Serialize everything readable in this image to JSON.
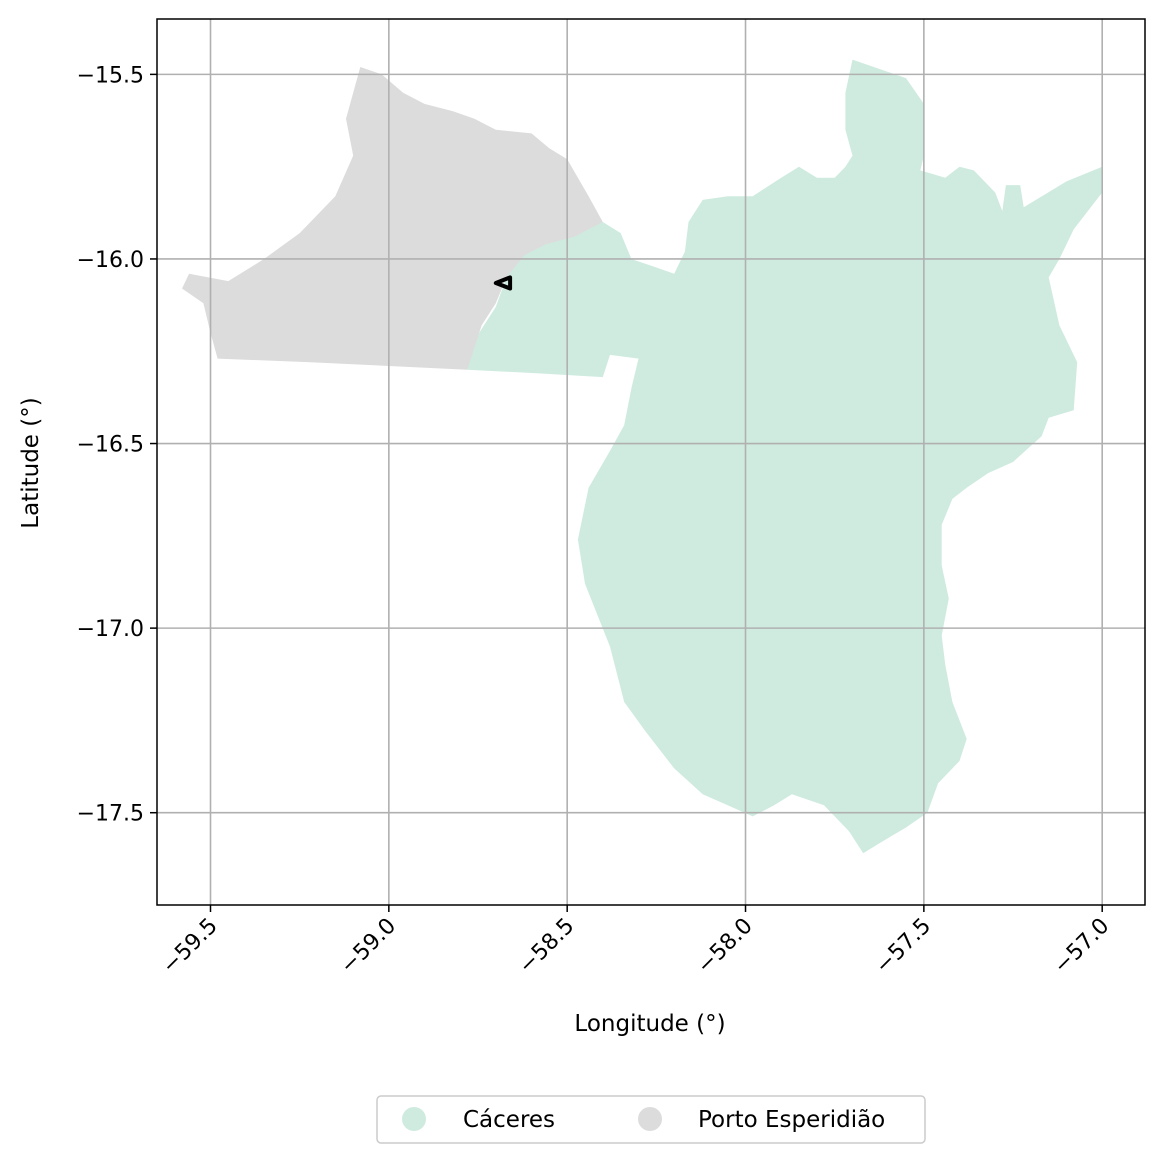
{
  "map": {
    "xlabel": "Longitude (°)",
    "ylabel": "Latitude (°)",
    "xlim": [
      -59.65,
      -56.88
    ],
    "ylim": [
      -17.75,
      -15.35
    ],
    "grid": true,
    "x_ticks": [
      -59.5,
      -59.0,
      -58.5,
      -58.0,
      -57.5,
      -57.0
    ],
    "y_ticks": [
      -15.5,
      -16.0,
      -16.5,
      -17.0,
      -17.5
    ],
    "x_tick_labels": [
      "−59.5",
      "−59.0",
      "−58.5",
      "−58.0",
      "−57.5",
      "−57.0"
    ],
    "y_tick_labels": [
      "−15.5",
      "−16.0",
      "−16.5",
      "−17.0",
      "−17.5"
    ],
    "regions": [
      {
        "name": "Cáceres",
        "color": "#cfebdf",
        "coords": [
          [
            -57.7,
            -15.46
          ],
          [
            -57.55,
            -15.51
          ],
          [
            -57.5,
            -15.58
          ],
          [
            -57.5,
            -15.72
          ],
          [
            -57.51,
            -15.76
          ],
          [
            -57.44,
            -15.78
          ],
          [
            -57.4,
            -15.75
          ],
          [
            -57.36,
            -15.76
          ],
          [
            -57.3,
            -15.82
          ],
          [
            -57.28,
            -15.87
          ],
          [
            -57.27,
            -15.8
          ],
          [
            -57.23,
            -15.8
          ],
          [
            -57.22,
            -15.86
          ],
          [
            -57.1,
            -15.79
          ],
          [
            -57.0,
            -15.75
          ],
          [
            -57.0,
            -15.82
          ],
          [
            -57.08,
            -15.92
          ],
          [
            -57.12,
            -16.0
          ],
          [
            -57.15,
            -16.05
          ],
          [
            -57.12,
            -16.18
          ],
          [
            -57.07,
            -16.28
          ],
          [
            -57.08,
            -16.41
          ],
          [
            -57.15,
            -16.43
          ],
          [
            -57.17,
            -16.48
          ],
          [
            -57.25,
            -16.55
          ],
          [
            -57.32,
            -16.58
          ],
          [
            -57.38,
            -16.62
          ],
          [
            -57.42,
            -16.65
          ],
          [
            -57.45,
            -16.72
          ],
          [
            -57.45,
            -16.83
          ],
          [
            -57.43,
            -16.92
          ],
          [
            -57.45,
            -17.02
          ],
          [
            -57.44,
            -17.1
          ],
          [
            -57.42,
            -17.2
          ],
          [
            -57.38,
            -17.3
          ],
          [
            -57.4,
            -17.36
          ],
          [
            -57.46,
            -17.42
          ],
          [
            -57.49,
            -17.5
          ],
          [
            -57.55,
            -17.54
          ],
          [
            -57.62,
            -17.58
          ],
          [
            -57.67,
            -17.61
          ],
          [
            -57.71,
            -17.55
          ],
          [
            -57.78,
            -17.48
          ],
          [
            -57.87,
            -17.45
          ],
          [
            -57.92,
            -17.48
          ],
          [
            -57.98,
            -17.51
          ],
          [
            -58.05,
            -17.48
          ],
          [
            -58.12,
            -17.45
          ],
          [
            -58.2,
            -17.38
          ],
          [
            -58.28,
            -17.28
          ],
          [
            -58.34,
            -17.2
          ],
          [
            -58.38,
            -17.05
          ],
          [
            -58.45,
            -16.88
          ],
          [
            -58.47,
            -16.76
          ],
          [
            -58.44,
            -16.62
          ],
          [
            -58.38,
            -16.52
          ],
          [
            -58.34,
            -16.45
          ],
          [
            -58.32,
            -16.35
          ],
          [
            -58.3,
            -16.27
          ],
          [
            -58.38,
            -16.26
          ],
          [
            -58.4,
            -16.32
          ],
          [
            -58.58,
            -16.31
          ],
          [
            -58.78,
            -16.3
          ],
          [
            -58.76,
            -16.22
          ],
          [
            -58.7,
            -16.13
          ],
          [
            -58.67,
            -16.05
          ],
          [
            -58.63,
            -15.98
          ],
          [
            -58.56,
            -15.95
          ],
          [
            -58.5,
            -15.93
          ],
          [
            -58.46,
            -15.91
          ],
          [
            -58.4,
            -15.9
          ],
          [
            -58.35,
            -15.93
          ],
          [
            -58.32,
            -16.0
          ],
          [
            -58.26,
            -16.02
          ],
          [
            -58.2,
            -16.04
          ],
          [
            -58.17,
            -15.98
          ],
          [
            -58.16,
            -15.9
          ],
          [
            -58.12,
            -15.84
          ],
          [
            -58.05,
            -15.83
          ],
          [
            -57.98,
            -15.83
          ],
          [
            -57.9,
            -15.78
          ],
          [
            -57.85,
            -15.75
          ],
          [
            -57.8,
            -15.78
          ],
          [
            -57.75,
            -15.78
          ],
          [
            -57.72,
            -15.75
          ],
          [
            -57.7,
            -15.72
          ],
          [
            -57.72,
            -15.65
          ],
          [
            -57.72,
            -15.55
          ]
        ]
      },
      {
        "name": "Porto Esperidião",
        "color": "#dcdcdc",
        "coords": [
          [
            -59.08,
            -15.48
          ],
          [
            -59.02,
            -15.5
          ],
          [
            -58.96,
            -15.55
          ],
          [
            -58.9,
            -15.58
          ],
          [
            -58.82,
            -15.6
          ],
          [
            -58.76,
            -15.62
          ],
          [
            -58.7,
            -15.65
          ],
          [
            -58.6,
            -15.66
          ],
          [
            -58.55,
            -15.7
          ],
          [
            -58.5,
            -15.73
          ],
          [
            -58.44,
            -15.83
          ],
          [
            -58.4,
            -15.9
          ],
          [
            -58.48,
            -15.94
          ],
          [
            -58.56,
            -15.96
          ],
          [
            -58.62,
            -15.99
          ],
          [
            -58.67,
            -16.05
          ],
          [
            -58.7,
            -16.12
          ],
          [
            -58.74,
            -16.18
          ],
          [
            -58.78,
            -16.3
          ],
          [
            -59.0,
            -16.29
          ],
          [
            -59.22,
            -16.28
          ],
          [
            -59.48,
            -16.27
          ],
          [
            -59.5,
            -16.2
          ],
          [
            -59.52,
            -16.12
          ],
          [
            -59.58,
            -16.08
          ],
          [
            -59.56,
            -16.04
          ],
          [
            -59.45,
            -16.06
          ],
          [
            -59.35,
            -16.0
          ],
          [
            -59.25,
            -15.93
          ],
          [
            -59.15,
            -15.83
          ],
          [
            -59.1,
            -15.72
          ],
          [
            -59.12,
            -15.62
          ],
          [
            -59.1,
            -15.55
          ]
        ]
      }
    ],
    "marker": {
      "coords": [
        [
          -58.7,
          -16.065
        ],
        [
          -58.66,
          -16.05
        ],
        [
          -58.66,
          -16.08
        ]
      ],
      "color": "#000000"
    },
    "legend": {
      "placement": "bottom-center, below axes",
      "entries": [
        {
          "label": "Cáceres",
          "color": "#cfebdf"
        },
        {
          "label": "Porto Esperidião",
          "color": "#dcdcdc"
        }
      ]
    }
  }
}
